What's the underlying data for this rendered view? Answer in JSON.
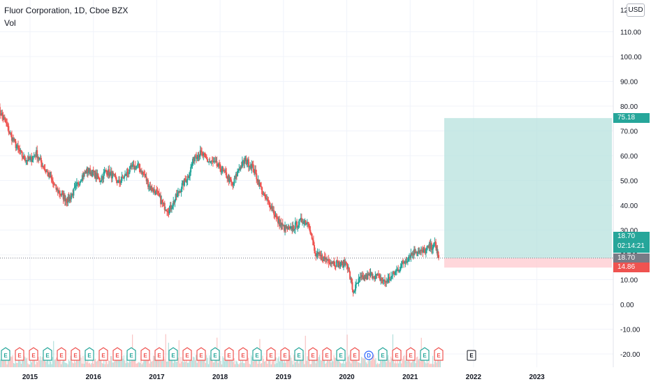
{
  "legend": {
    "title": "Fluor Corporation, 1D, Cboe BZX",
    "volume_label": "Vol"
  },
  "currency": "USD",
  "price_tags": {
    "target": "75.18",
    "last_price": "18.70",
    "countdown": "02:14:21",
    "entry": "18.70",
    "stop": "14.86"
  },
  "colors": {
    "up": "#26a69a",
    "down": "#ef5350",
    "profit_zone": "#b2dfdb",
    "loss_zone": "#ffcdd2",
    "grid": "#f0f3fa",
    "target_tag": "#26a69a",
    "stop_tag": "#ef5350",
    "entry_tag": "#787b86",
    "last_tag": "#26a69a"
  },
  "chart_data": {
    "type": "candlestick",
    "title": "Fluor Corporation, 1D, Cboe BZX",
    "ylabel": "USD",
    "ylim": [
      -22,
      122
    ],
    "y_ticks": [
      110,
      100,
      90,
      80,
      70,
      60,
      50,
      40,
      30,
      20,
      10,
      0,
      -10,
      -20
    ],
    "y_tick_labels": [
      "110.00",
      "100.00",
      "90.00",
      "80.00",
      "70.00",
      "60.00",
      "50.00",
      "40.00",
      "30.00",
      "20.00",
      "10.00",
      "0.00",
      "-10.00",
      "-20.00"
    ],
    "top_partial_label": "12",
    "x_ticks": [
      "2015",
      "2016",
      "2017",
      "2018",
      "2019",
      "2020",
      "2021",
      "2022",
      "2023"
    ],
    "grid": true,
    "series": [
      {
        "name": "price",
        "x": [
          2014.5,
          2014.6,
          2014.7,
          2014.8,
          2014.9,
          2015.0,
          2015.1,
          2015.2,
          2015.3,
          2015.4,
          2015.5,
          2015.6,
          2015.7,
          2015.8,
          2015.9,
          2016.0,
          2016.1,
          2016.2,
          2016.3,
          2016.4,
          2016.5,
          2016.6,
          2016.7,
          2016.8,
          2016.9,
          2017.0,
          2017.1,
          2017.2,
          2017.3,
          2017.4,
          2017.5,
          2017.6,
          2017.7,
          2017.8,
          2017.9,
          2018.0,
          2018.1,
          2018.2,
          2018.3,
          2018.4,
          2018.5,
          2018.6,
          2018.7,
          2018.8,
          2018.9,
          2019.0,
          2019.1,
          2019.2,
          2019.3,
          2019.4,
          2019.5,
          2019.6,
          2019.7,
          2019.8,
          2019.9,
          2020.0,
          2020.1,
          2020.2,
          2020.3,
          2020.4,
          2020.5,
          2020.6,
          2020.7,
          2020.8,
          2020.9,
          2021.0,
          2021.1,
          2021.2,
          2021.3,
          2021.4,
          2021.45
        ],
        "close": [
          79,
          74,
          68,
          63,
          59,
          58,
          61,
          56,
          52,
          47,
          44,
          42,
          46,
          51,
          54,
          53,
          50,
          54,
          52,
          49,
          52,
          55,
          56,
          52,
          47,
          45,
          40,
          38,
          43,
          48,
          52,
          60,
          61,
          58,
          57,
          55,
          52,
          48,
          55,
          58,
          56,
          50,
          43,
          40,
          34,
          31,
          30,
          32,
          34,
          33,
          20,
          19,
          18,
          17,
          16,
          17,
          5,
          10,
          11,
          12,
          11,
          9,
          11,
          14,
          17,
          20,
          22,
          21,
          23,
          24,
          18.7
        ]
      }
    ],
    "volume_label": "Vol",
    "events": {
      "markers": [
        "E",
        "E",
        "E",
        "E",
        "E",
        "E",
        "E",
        "E",
        "E",
        "E",
        "E",
        "E",
        "E",
        "E",
        "E",
        "E",
        "E",
        "E",
        "E",
        "E",
        "E",
        "E",
        "E",
        "E",
        "E",
        "E",
        "D",
        "E",
        "E",
        "E",
        "E",
        "E"
      ],
      "future_marker": "E"
    },
    "position": {
      "entry": 18.7,
      "target": 75.18,
      "stop": 14.86
    }
  }
}
